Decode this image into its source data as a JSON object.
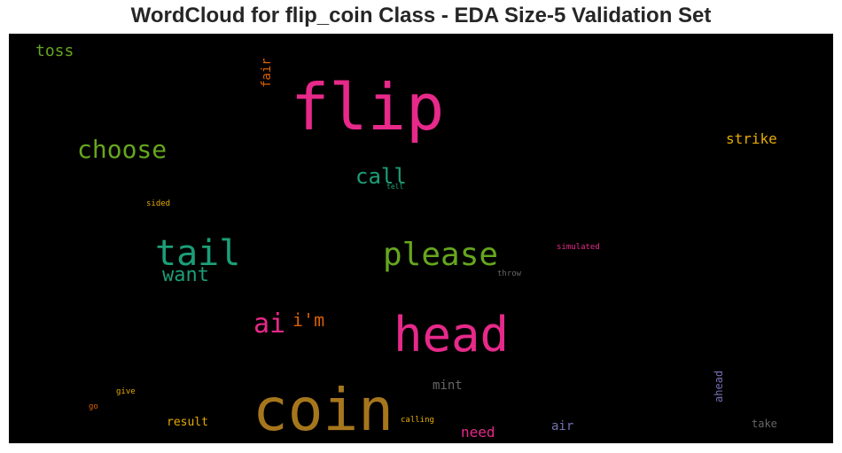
{
  "title": "WordCloud for flip_coin Class - EDA Size-5 Validation Set",
  "chart_data": {
    "type": "wordcloud",
    "title": "WordCloud for flip_coin Class - EDA Size-5 Validation Set",
    "background": "#000000",
    "words": [
      {
        "text": "coin",
        "color": "#a6761d"
      },
      {
        "text": "flip",
        "color": "#e7298a"
      },
      {
        "text": "head",
        "color": "#e7298a"
      },
      {
        "text": "please",
        "color": "#66a61e"
      },
      {
        "text": "tail",
        "color": "#1b9e77"
      },
      {
        "text": "choose",
        "color": "#66a61e"
      },
      {
        "text": "call",
        "color": "#1b9e77"
      },
      {
        "text": "ai",
        "color": "#e7298a"
      },
      {
        "text": "want",
        "color": "#1b9e77"
      },
      {
        "text": "i'm",
        "color": "#d95f02"
      },
      {
        "text": "toss",
        "color": "#66a61e"
      },
      {
        "text": "strike",
        "color": "#e6ab02"
      },
      {
        "text": "need",
        "color": "#e7298a"
      },
      {
        "text": "mint",
        "color": "#666666"
      },
      {
        "text": "air",
        "color": "#7570b3"
      },
      {
        "text": "result",
        "color": "#e6ab02"
      },
      {
        "text": "take",
        "color": "#666666"
      },
      {
        "text": "fair",
        "color": "#d95f02"
      },
      {
        "text": "ahead",
        "color": "#7570b3"
      },
      {
        "text": "simulated",
        "color": "#e7298a"
      },
      {
        "text": "throw",
        "color": "#666666"
      },
      {
        "text": "calling",
        "color": "#e6ab02"
      },
      {
        "text": "sided",
        "color": "#e6ab02"
      },
      {
        "text": "tell",
        "color": "#1b9e77"
      },
      {
        "text": "give",
        "color": "#e6ab02"
      },
      {
        "text": "go",
        "color": "#d95f02"
      }
    ]
  }
}
